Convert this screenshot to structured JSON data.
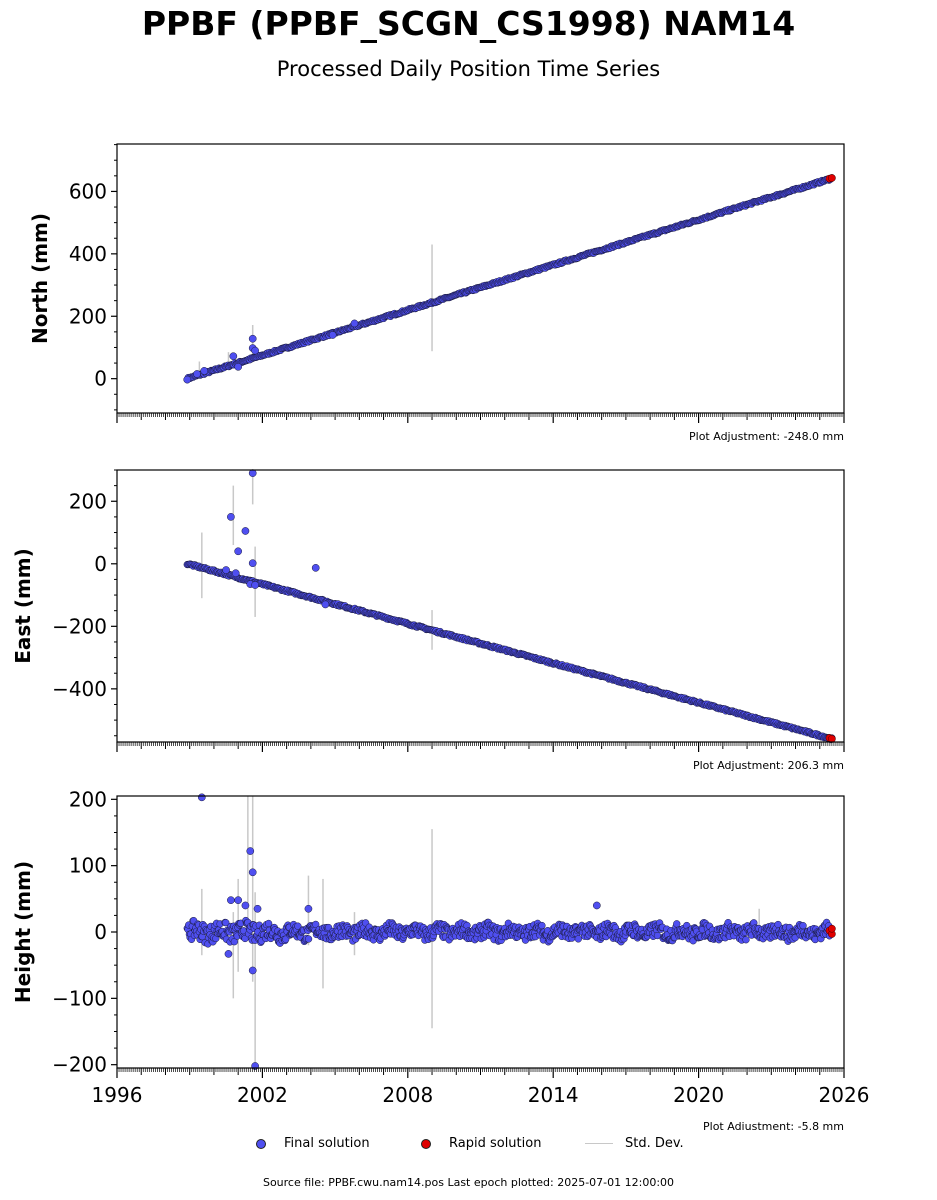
{
  "title": "PPBF (PPBF_SCGN_CS1998) NAM14",
  "subtitle": "Processed Daily Position Time Series",
  "chart_data": [
    {
      "type": "scatter",
      "ylabel": "North (mm)",
      "yticks": [
        0,
        200,
        400,
        600
      ],
      "ylim": [
        -110,
        752
      ],
      "xlim": [
        1996,
        2026
      ],
      "adjustment": "Plot Adjustment: -248.0 mm",
      "trend": {
        "x": [
          1998.9,
          2025.5
        ],
        "y": [
          0,
          642
        ]
      },
      "final_points": [
        [
          1998.9,
          -3
        ],
        [
          1999.3,
          15
        ],
        [
          1999.6,
          25
        ],
        [
          2000.8,
          72
        ],
        [
          2001.0,
          38
        ],
        [
          2001.6,
          128
        ],
        [
          2001.6,
          98
        ],
        [
          2001.7,
          90
        ],
        [
          2004.9,
          140
        ],
        [
          2005.8,
          177
        ]
      ],
      "rapid_points": [
        [
          2025.4,
          641
        ],
        [
          2025.5,
          643
        ]
      ],
      "std_dev_bars": [
        [
          2001.6,
          60,
          172
        ],
        [
          2009.0,
          88,
          430
        ],
        [
          2000.6,
          50,
          85
        ],
        [
          1999.4,
          5,
          55
        ]
      ]
    },
    {
      "type": "scatter",
      "ylabel": "East (mm)",
      "yticks": [
        -400,
        -200,
        0,
        200
      ],
      "ylim": [
        -570,
        300
      ],
      "xlim": [
        1996,
        2026
      ],
      "adjustment": "Plot Adjustment: 206.3 mm",
      "trend": {
        "x": [
          1998.9,
          2025.5
        ],
        "y": [
          0,
          -560
        ]
      },
      "final_points": [
        [
          2000.7,
          150
        ],
        [
          2001.0,
          40
        ],
        [
          2001.3,
          105
        ],
        [
          2001.6,
          290
        ],
        [
          2001.6,
          2
        ],
        [
          2001.5,
          -65
        ],
        [
          2001.7,
          -68
        ],
        [
          2004.2,
          -13
        ],
        [
          2004.6,
          -130
        ],
        [
          2000.5,
          -20
        ],
        [
          2000.9,
          -30
        ]
      ],
      "rapid_points": [
        [
          2025.4,
          -557
        ],
        [
          2025.5,
          -560
        ]
      ],
      "std_dev_bars": [
        [
          2001.6,
          190,
          300
        ],
        [
          2001.7,
          -170,
          55
        ],
        [
          1999.5,
          -110,
          100
        ],
        [
          2000.8,
          60,
          250
        ],
        [
          2009.0,
          -275,
          -148
        ]
      ]
    },
    {
      "type": "scatter",
      "ylabel": "Height (mm)",
      "yticks": [
        -200,
        -100,
        0,
        100,
        200
      ],
      "ylim": [
        -205,
        205
      ],
      "xlim": [
        1996,
        2026
      ],
      "xticks": [
        1996,
        2002,
        2008,
        2014,
        2020,
        2026
      ],
      "adjustment": "Plot Adjustment: -5.8 mm",
      "final_points": [
        [
          1999.5,
          203
        ],
        [
          2001.5,
          122
        ],
        [
          2001.6,
          90
        ],
        [
          2001.8,
          35
        ],
        [
          2000.7,
          48
        ],
        [
          2001.0,
          48
        ],
        [
          2001.3,
          40
        ],
        [
          2000.6,
          -33
        ],
        [
          2001.6,
          -58
        ],
        [
          2001.7,
          -202
        ],
        [
          2003.9,
          35
        ],
        [
          2015.8,
          40
        ]
      ],
      "rapid_points": [
        [
          2025.4,
          2
        ],
        [
          2025.5,
          -3
        ],
        [
          2025.5,
          5
        ]
      ],
      "std_dev_bars": [
        [
          1999.5,
          -35,
          65
        ],
        [
          2000.8,
          -100,
          30
        ],
        [
          2001.0,
          -60,
          80
        ],
        [
          2001.4,
          0,
          205
        ],
        [
          2001.6,
          -75,
          205
        ],
        [
          2001.7,
          -205,
          60
        ],
        [
          2003.9,
          -20,
          85
        ],
        [
          2004.5,
          -85,
          80
        ],
        [
          2009.0,
          -145,
          155
        ],
        [
          2005.8,
          -35,
          30
        ],
        [
          2022.5,
          -10,
          35
        ]
      ]
    }
  ],
  "legend": {
    "final": "Final solution",
    "rapid": "Rapid solution",
    "stddev": "Std. Dev."
  },
  "colors": {
    "final": "#4f4ff0",
    "rapid": "#e00000",
    "stddev": "#c8c8c8"
  },
  "footer": "Source file: PPBF.cwu.nam14.pos  Last epoch plotted: 2025-07-01 12:00:00"
}
